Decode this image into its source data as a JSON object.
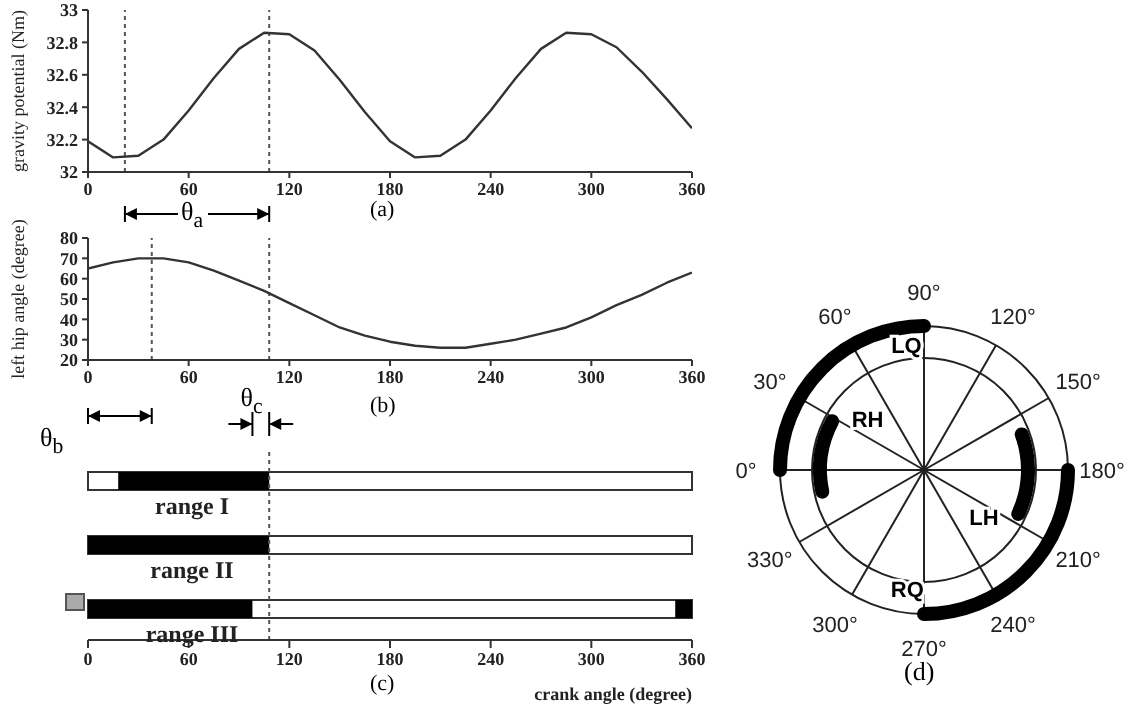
{
  "chart_data": [
    {
      "type": "line",
      "ylabel": "gravity potential (Nm)",
      "annotations": [
        "θ$_{a}$",
        "(a)"
      ],
      "x": [
        0,
        15,
        30,
        45,
        60,
        75,
        90,
        105,
        120,
        135,
        150,
        165,
        180,
        195,
        210,
        225,
        240,
        255,
        270,
        285,
        300,
        315,
        330,
        345,
        360
      ],
      "xlim": [
        0,
        360
      ],
      "xticks": [
        0,
        60,
        120,
        180,
        240,
        300,
        360
      ],
      "ylim": [
        32,
        33
      ],
      "yticks": [
        32,
        32.2,
        32.4,
        32.6,
        32.8,
        33
      ],
      "series": [
        {
          "color": "#333333",
          "values": [
            32.19,
            32.09,
            32.1,
            32.2,
            32.38,
            32.58,
            32.76,
            32.86,
            32.85,
            32.75,
            32.57,
            32.37,
            32.19,
            32.09,
            32.1,
            32.2,
            32.38,
            32.58,
            32.76,
            32.86,
            32.85,
            32.77,
            32.62,
            32.45,
            32.27
          ]
        }
      ],
      "ref_lines": [
        {
          "axis": "x",
          "value": 22,
          "line_style": "dotted"
        },
        {
          "axis": "x",
          "value": 108,
          "line_style": "dotted"
        }
      ]
    },
    {
      "type": "line",
      "ylabel": "left hip angle (degree)",
      "annotations": [
        "θ$_{b}$",
        "θ$_{c}$",
        "(b)"
      ],
      "x": [
        0,
        15,
        30,
        45,
        60,
        75,
        90,
        105,
        120,
        135,
        150,
        165,
        180,
        195,
        210,
        225,
        240,
        255,
        270,
        285,
        300,
        315,
        330,
        345,
        360
      ],
      "xlim": [
        0,
        360
      ],
      "xticks": [
        0,
        60,
        120,
        180,
        240,
        300,
        360
      ],
      "ylim": [
        20,
        80
      ],
      "yticks": [
        20,
        30,
        40,
        50,
        60,
        70,
        80
      ],
      "series": [
        {
          "color": "#333333",
          "values": [
            65,
            68,
            70,
            70,
            68,
            64,
            59,
            54,
            48,
            42,
            36,
            32,
            29,
            27,
            26,
            26,
            28,
            30,
            33,
            36,
            41,
            47,
            52,
            58,
            63
          ]
        }
      ],
      "ref_lines": [
        {
          "axis": "x",
          "value": 38,
          "line_style": "dotted"
        },
        {
          "axis": "x",
          "value": 108,
          "line_style": "dotted"
        }
      ]
    },
    {
      "type": "bar",
      "orientation": "horizontal",
      "xlabel": "crank angle (degree)",
      "annotations": [
        "(c)"
      ],
      "categories": [
        "range I",
        "range II",
        "range III"
      ],
      "xlim": [
        0,
        360
      ],
      "xticks": [
        0,
        60,
        120,
        180,
        240,
        300,
        360
      ],
      "series": [
        {
          "color": "#000000",
          "base": [
            18,
            0,
            0
          ],
          "values": [
            90,
            108,
            98
          ]
        },
        {
          "color": "#000000",
          "base": [
            null,
            null,
            350
          ],
          "values": [
            null,
            null,
            10
          ]
        }
      ],
      "ref_lines": [
        {
          "axis": "x",
          "value": 108,
          "line_style": "dotted"
        }
      ]
    },
    {
      "type": "other",
      "categories": [
        "0°",
        "30°",
        "60°",
        "90°",
        "120°",
        "150°",
        "180°",
        "210°",
        "240°",
        "270°",
        "300°",
        "330°"
      ],
      "annotations": [
        "LQ",
        "RH",
        "LH",
        "RQ",
        "(d)"
      ]
    }
  ]
}
